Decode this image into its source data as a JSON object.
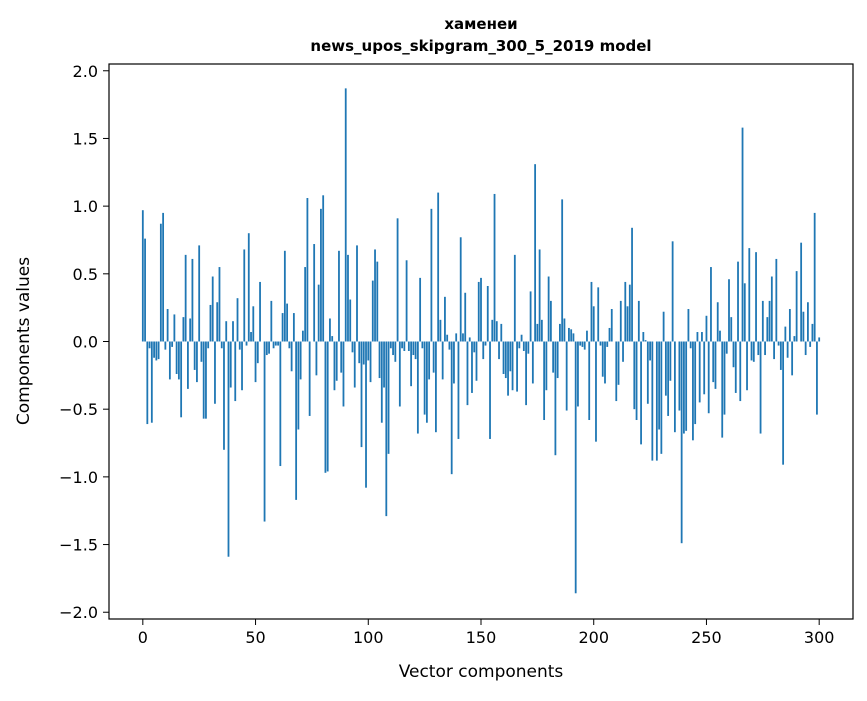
{
  "chart_data": {
    "type": "bar",
    "title_line1": "хаменеи",
    "title_line2": "news_upos_skipgram_300_5_2019 model",
    "xlabel": "Vector components",
    "ylabel": "Components values",
    "xlim": [
      -15,
      315
    ],
    "ylim": [
      -2.05,
      2.05
    ],
    "xticks": [
      0,
      50,
      100,
      150,
      200,
      250,
      300
    ],
    "xtick_labels": [
      "0",
      "50",
      "100",
      "150",
      "200",
      "250",
      "300"
    ],
    "yticks": [
      2.0,
      1.5,
      1.0,
      0.5,
      0.0,
      -0.5,
      -1.0,
      -1.5,
      -2.0
    ],
    "ytick_labels": [
      "2.0",
      "1.5",
      "1.0",
      "0.5",
      "0.0",
      "−0.5",
      "−1.0",
      "−1.5",
      "−2.0"
    ],
    "bar_color": "#1f77b4",
    "values": [
      0.97,
      0.76,
      -0.61,
      -0.05,
      -0.6,
      -0.12,
      -0.14,
      -0.13,
      0.87,
      0.95,
      -0.06,
      0.24,
      -0.28,
      -0.04,
      0.2,
      -0.24,
      -0.28,
      -0.56,
      0.18,
      0.64,
      -0.35,
      0.17,
      0.61,
      -0.21,
      -0.3,
      0.71,
      -0.15,
      -0.57,
      -0.57,
      -0.05,
      0.27,
      0.48,
      -0.46,
      0.29,
      0.55,
      -0.05,
      -0.8,
      0.15,
      -1.59,
      -0.34,
      0.15,
      -0.44,
      0.32,
      -0.06,
      -0.36,
      0.68,
      -0.03,
      0.8,
      0.07,
      0.26,
      -0.3,
      -0.16,
      0.44,
      0.0,
      -1.33,
      -0.1,
      -0.09,
      0.3,
      -0.05,
      -0.03,
      -0.03,
      -0.92,
      0.21,
      0.67,
      0.28,
      -0.05,
      -0.22,
      0.21,
      -1.17,
      -0.65,
      -0.28,
      0.08,
      0.55,
      1.06,
      -0.55,
      0.0,
      0.72,
      -0.25,
      0.42,
      0.98,
      1.08,
      -0.97,
      -0.96,
      0.17,
      0.04,
      -0.36,
      -0.29,
      0.67,
      -0.23,
      -0.48,
      1.87,
      0.64,
      0.31,
      -0.08,
      -0.34,
      0.71,
      -0.16,
      -0.78,
      -0.17,
      -1.08,
      -0.14,
      -0.3,
      0.45,
      0.68,
      0.59,
      -0.27,
      -0.6,
      -0.34,
      -1.29,
      -0.83,
      -0.05,
      -0.1,
      -0.15,
      0.91,
      -0.48,
      -0.05,
      -0.07,
      0.6,
      -0.07,
      -0.33,
      -0.1,
      -0.13,
      -0.68,
      0.47,
      -0.05,
      -0.54,
      -0.6,
      -0.28,
      0.98,
      -0.23,
      -0.67,
      1.1,
      0.16,
      -0.28,
      0.33,
      0.05,
      -0.06,
      -0.98,
      -0.31,
      0.06,
      -0.72,
      0.77,
      0.06,
      0.36,
      -0.47,
      0.03,
      -0.38,
      -0.08,
      -0.29,
      0.44,
      0.47,
      -0.13,
      -0.03,
      0.41,
      -0.72,
      0.16,
      1.09,
      0.15,
      -0.13,
      0.13,
      -0.24,
      -0.27,
      -0.4,
      -0.22,
      -0.36,
      0.64,
      -0.37,
      -0.05,
      0.05,
      -0.07,
      -0.47,
      -0.09,
      0.37,
      -0.31,
      1.31,
      0.13,
      0.68,
      0.16,
      -0.58,
      -0.36,
      0.48,
      0.3,
      -0.23,
      -0.84,
      -0.27,
      0.13,
      1.05,
      0.17,
      -0.51,
      0.1,
      0.09,
      0.06,
      -1.86,
      -0.48,
      -0.03,
      -0.04,
      -0.06,
      0.08,
      -0.58,
      0.44,
      0.26,
      -0.74,
      0.4,
      -0.03,
      -0.26,
      -0.31,
      -0.04,
      0.1,
      0.24,
      0.0,
      -0.44,
      -0.32,
      0.3,
      -0.15,
      0.44,
      0.26,
      0.42,
      0.84,
      -0.5,
      -0.58,
      0.3,
      -0.76,
      0.07,
      0.01,
      -0.46,
      -0.14,
      -0.88,
      0.0,
      -0.88,
      -0.65,
      -0.83,
      0.22,
      -0.4,
      -0.55,
      -0.29,
      0.74,
      -0.67,
      0.0,
      -0.51,
      -1.49,
      -0.68,
      -0.66,
      0.24,
      -0.05,
      -0.73,
      -0.61,
      0.07,
      -0.45,
      0.07,
      -0.39,
      0.19,
      -0.53,
      0.55,
      -0.3,
      -0.35,
      0.29,
      0.08,
      -0.71,
      -0.54,
      -0.09,
      0.46,
      0.18,
      -0.19,
      -0.38,
      0.59,
      -0.44,
      1.58,
      0.43,
      -0.36,
      0.69,
      -0.14,
      -0.15,
      0.66,
      -0.1,
      -0.68,
      0.3,
      -0.1,
      0.18,
      0.3,
      0.48,
      -0.13,
      0.61,
      -0.03,
      -0.21,
      -0.91,
      0.11,
      -0.12,
      0.24,
      -0.25,
      0.04,
      0.52,
      0.0,
      0.73,
      0.22,
      -0.1,
      0.29,
      -0.04,
      0.13,
      0.95,
      -0.54,
      0.03
    ]
  }
}
